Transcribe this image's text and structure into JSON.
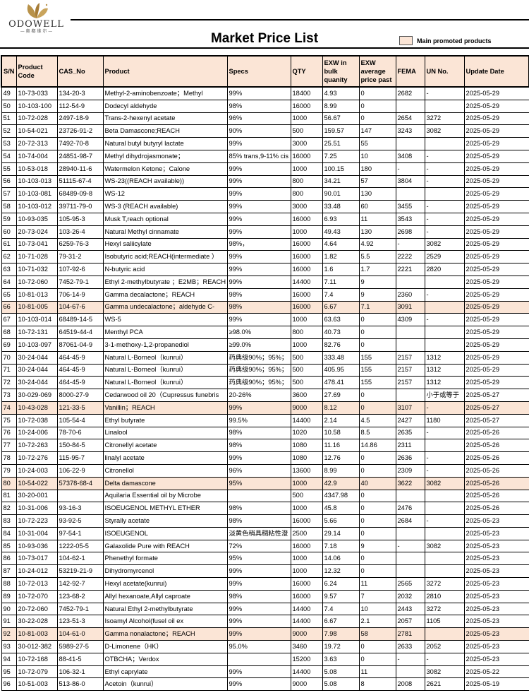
{
  "logo": {
    "brand": "ODOWELL",
    "sub": "— 奥 都 维 尔 —"
  },
  "title": "Market Price List",
  "legend": {
    "label": "Main promoted products",
    "color": "#fbe5d6"
  },
  "columns": [
    "S/N",
    "Product Code",
    "CAS_No",
    "Product",
    "Specs",
    "QTY",
    "EXW in bulk quanity",
    "EXW average price past",
    "FEMA",
    "UN No.",
    "Update Date"
  ],
  "rows": [
    {
      "c": [
        "49",
        "10-73-033",
        "134-20-3",
        "Methyl-2-aminobenzoate；Methyl",
        "99%",
        "18400",
        "4.93",
        "0",
        "2682",
        "-",
        "2025-05-29"
      ]
    },
    {
      "c": [
        "50",
        "10-103-100",
        "112-54-9",
        "Dodecyl aldehyde",
        "98%",
        "16000",
        "8.99",
        "0",
        "",
        "",
        "2025-05-29"
      ]
    },
    {
      "c": [
        "51",
        "10-72-028",
        "2497-18-9",
        "Trans-2-hexenyl acetate",
        "96%",
        "1000",
        "56.67",
        "0",
        "2654",
        "3272",
        "2025-05-29"
      ]
    },
    {
      "c": [
        "52",
        "10-54-021",
        "23726-91-2",
        "Beta Damascone;REACH",
        "90%",
        "500",
        "159.57",
        "147",
        "3243",
        "3082",
        "2025-05-29"
      ]
    },
    {
      "c": [
        "53",
        "20-72-313",
        "7492-70-8",
        "Natural butyl butyryl lactate",
        "99%",
        "3000",
        "25.51",
        "55",
        "",
        "",
        "2025-05-29"
      ]
    },
    {
      "c": [
        "54",
        "10-74-004",
        "24851-98-7",
        "Methyl dihydrojasmonate；",
        "85% trans,9-11% cis",
        "16000",
        "7.25",
        "10",
        "3408",
        "-",
        "2025-05-29"
      ]
    },
    {
      "c": [
        "55",
        "10-53-018",
        "28940-11-6",
        "Watermelon Ketone；Calone",
        "99%",
        "1000",
        "100.15",
        "180",
        "-",
        "-",
        "2025-05-29"
      ]
    },
    {
      "c": [
        "56",
        "10-103-013",
        "51115-67-4",
        "WS-23((REACH available))",
        "99%",
        "800",
        "34.21",
        "57",
        "3804",
        "-",
        "2025-05-29"
      ]
    },
    {
      "c": [
        "57",
        "10-103-081",
        "68489-09-8",
        "WS-12",
        "99%",
        "800",
        "90.01",
        "130",
        "",
        "",
        "2025-05-29"
      ]
    },
    {
      "c": [
        "58",
        "10-103-012",
        "39711-79-0",
        "WS-3 (REACH available)",
        "99%",
        "3000",
        "33.48",
        "60",
        "3455",
        "-",
        "2025-05-29"
      ]
    },
    {
      "c": [
        "59",
        "10-93-035",
        "105-95-3",
        "Musk T,reach optional",
        "99%",
        "16000",
        "6.93",
        "11",
        "3543",
        "-",
        "2025-05-29"
      ]
    },
    {
      "c": [
        "60",
        "20-73-024",
        "103-26-4",
        "Natural Methyl cinnamate",
        "99%",
        "1000",
        "49.43",
        "130",
        "2698",
        "-",
        "2025-05-29"
      ]
    },
    {
      "c": [
        "61",
        "10-73-041",
        "6259-76-3",
        "Hexyl saliicylate",
        "98%，",
        "16000",
        "4.64",
        "4.92",
        "-",
        "3082",
        "2025-05-29"
      ]
    },
    {
      "c": [
        "62",
        "10-71-028",
        "79-31-2",
        "Isobutyric acid;REACH(intermediate ）",
        "99%",
        "16000",
        "1.82",
        "5.5",
        "2222",
        "2529",
        "2025-05-29"
      ]
    },
    {
      "c": [
        "63",
        "10-71-032",
        "107-92-6",
        "N-butyric acid",
        "99%",
        "16000",
        "1.6",
        "1.7",
        "2221",
        "2820",
        "2025-05-29"
      ]
    },
    {
      "c": [
        "64",
        "10-72-060",
        "7452-79-1",
        "Ethyl 2-methylbutyrate ；E2MB；REACH",
        "99%",
        "14400",
        "7.11",
        "9",
        "",
        "",
        "2025-05-29"
      ]
    },
    {
      "c": [
        "65",
        "10-81-013",
        "706-14-9",
        "Gamma decalactone；REACH",
        "98%",
        "16000",
        "7.4",
        "9",
        "2360",
        "-",
        "2025-05-29"
      ]
    },
    {
      "promo": true,
      "c": [
        "66",
        "10-81-005",
        "104-67-6",
        "Gamma undecalactone；aldehyde C-",
        "98%",
        "16000",
        "6.67",
        "7.1",
        "3091",
        "",
        "2025-05-29"
      ]
    },
    {
      "c": [
        "67",
        "10-103-014",
        "68489-14-5",
        "WS-5",
        "99%",
        "1000",
        "63.63",
        "0",
        "4309",
        "-",
        "2025-05-29"
      ]
    },
    {
      "c": [
        "68",
        "10-72-131",
        "64519-44-4",
        "Menthyl PCA",
        "≥98.0%",
        "800",
        "40.73",
        "0",
        "",
        "",
        "2025-05-29"
      ]
    },
    {
      "c": [
        "69",
        "10-103-097",
        "87061-04-9",
        "3-1-methoxy-1,2-propanediol",
        "≥99.0%",
        "1000",
        "82.76",
        "0",
        "",
        "",
        "2025-05-29"
      ]
    },
    {
      "c": [
        "70",
        "30-24-044",
        "464-45-9",
        "Natural L-Borneol（kunrui）",
        "药典级90%；95%；",
        "500",
        "333.48",
        "155",
        "2157",
        "1312",
        "2025-05-29"
      ]
    },
    {
      "c": [
        "71",
        "30-24-044",
        "464-45-9",
        "Natural L-Borneol（kunrui）",
        "药典级90%；95%；",
        "500",
        "405.95",
        "155",
        "2157",
        "1312",
        "2025-05-29"
      ]
    },
    {
      "c": [
        "72",
        "30-24-044",
        "464-45-9",
        "Natural L-Borneol（kunrui）",
        "药典级90%；95%；",
        "500",
        "478.41",
        "155",
        "2157",
        "1312",
        "2025-05-29"
      ]
    },
    {
      "c": [
        "73",
        "30-029-069",
        "8000-27-9",
        "Cedarwood oil 20（Cupressus funebris",
        "20-26%",
        "3600",
        "27.69",
        "0",
        "",
        "小于或等于",
        "2025-05-27"
      ]
    },
    {
      "promo": true,
      "c": [
        "74",
        "10-43-028",
        "121-33-5",
        "Vanillin；REACH",
        "99%",
        "9000",
        "8.12",
        "0",
        "3107",
        "-",
        "2025-05-27"
      ]
    },
    {
      "c": [
        "75",
        "10-72-038",
        "105-54-4",
        "Ethyl butyrate",
        "99.5%",
        "14400",
        "2.14",
        "4.5",
        "2427",
        "1180",
        "2025-05-27"
      ]
    },
    {
      "c": [
        "76",
        "10-24-006",
        "78-70-6",
        "Linalool",
        "98%",
        "1020",
        "10.58",
        "8.5",
        "2635",
        "-",
        "2025-05-26"
      ]
    },
    {
      "c": [
        "77",
        "10-72-263",
        "150-84-5",
        "Citronellyl acetate",
        "98%",
        "1080",
        "11.16",
        "14.86",
        "2311",
        "",
        "2025-05-26"
      ]
    },
    {
      "c": [
        "78",
        "10-72-276",
        "115-95-7",
        "linalyl acetate",
        "99%",
        "1080",
        "12.76",
        "0",
        "2636",
        "-",
        "2025-05-26"
      ]
    },
    {
      "c": [
        "79",
        "10-24-003",
        "106-22-9",
        "Citronellol",
        "96%",
        "13600",
        "8.99",
        "0",
        "2309",
        "-",
        "2025-05-26"
      ]
    },
    {
      "promo": true,
      "c": [
        "80",
        "10-54-022",
        "57378-68-4",
        "Delta damascone",
        "95%",
        "1000",
        "42.9",
        "40",
        "3622",
        "3082",
        "2025-05-26"
      ]
    },
    {
      "c": [
        "81",
        "30-20-001",
        "",
        "Aquilaria Essential oil by Microbe",
        "",
        "500",
        "4347.98",
        "0",
        "",
        "",
        "2025-05-26"
      ]
    },
    {
      "c": [
        "82",
        "10-31-006",
        "93-16-3",
        "ISOEUGENOL METHYL ETHER",
        "98%",
        "1000",
        "45.8",
        "0",
        "2476",
        "",
        "2025-05-26"
      ]
    },
    {
      "c": [
        "83",
        "10-72-223",
        "93-92-5",
        "Styrally acetate",
        "98%",
        "16000",
        "5.66",
        "0",
        "2684",
        "-",
        "2025-05-23"
      ]
    },
    {
      "c": [
        "84",
        "10-31-004",
        "97-54-1",
        "ISOEUGENOL",
        "淡黄色稍具稠粘性澄",
        "2500",
        "29.14",
        "0",
        "",
        "",
        "2025-05-23"
      ]
    },
    {
      "c": [
        "85",
        "10-93-036",
        "1222-05-5",
        "Galaxolide Pure with REACH",
        "72%",
        "16000",
        "7.18",
        "9",
        "-",
        "3082",
        "2025-05-23"
      ]
    },
    {
      "c": [
        "86",
        "10-73-017",
        "104-62-1",
        "Phenethyl formate",
        "95%",
        "1000",
        "14.06",
        "0",
        "",
        "",
        "2025-05-23"
      ]
    },
    {
      "c": [
        "87",
        "10-24-012",
        "53219-21-9",
        "Dihydromyrcenol",
        "99%",
        "1000",
        "12.32",
        "0",
        "",
        "",
        "2025-05-23"
      ]
    },
    {
      "c": [
        "88",
        "10-72-013",
        "142-92-7",
        "Hexyl acetate(kunrui)",
        "99%",
        "16000",
        "6.24",
        "11",
        "2565",
        "3272",
        "2025-05-23"
      ]
    },
    {
      "c": [
        "89",
        "10-72-070",
        "123-68-2",
        "Allyl hexanoate,Allyl caproate",
        "98%",
        "16000",
        "9.57",
        "7",
        "2032",
        "2810",
        "2025-05-23"
      ]
    },
    {
      "c": [
        "90",
        "20-72-060",
        "7452-79-1",
        "Natural Ethyl 2-methylbutyrate",
        "99%",
        "14400",
        "7.4",
        "10",
        "2443",
        "3272",
        "2025-05-23"
      ]
    },
    {
      "c": [
        "91",
        "30-22-028",
        "123-51-3",
        "Isoamyl Alcohol(fusel oil ex",
        "99%",
        "14400",
        "6.67",
        "2.1",
        "2057",
        "1105",
        "2025-05-23"
      ]
    },
    {
      "promo": true,
      "c": [
        "92",
        "10-81-003",
        "104-61-0",
        "Gamma nonalactone；REACH",
        "99%",
        "9000",
        "7.98",
        "58",
        "2781",
        "",
        "2025-05-23"
      ]
    },
    {
      "c": [
        "93",
        "30-012-382",
        "5989-27-5",
        "D-Limonene（HK）",
        "95.0%",
        "3460",
        "19.72",
        "0",
        "2633",
        "2052",
        "2025-05-23"
      ]
    },
    {
      "c": [
        "94",
        "10-72-168",
        "88-41-5",
        "OTBCHA；Verdox",
        "",
        "15200",
        "3.63",
        "0",
        "-",
        "-",
        "2025-05-23"
      ]
    },
    {
      "c": [
        "95",
        "10-72-079",
        "106-32-1",
        "Ethyl caprylate",
        "99%",
        "14400",
        "5.08",
        "11",
        "",
        "3082",
        "2025-05-22"
      ]
    },
    {
      "c": [
        "96",
        "10-51-003",
        "513-86-0",
        "Acetoin（kunrui）",
        "99%",
        "9000",
        "5.08",
        "8",
        "2008",
        "2621",
        "2025-05-19"
      ]
    }
  ]
}
